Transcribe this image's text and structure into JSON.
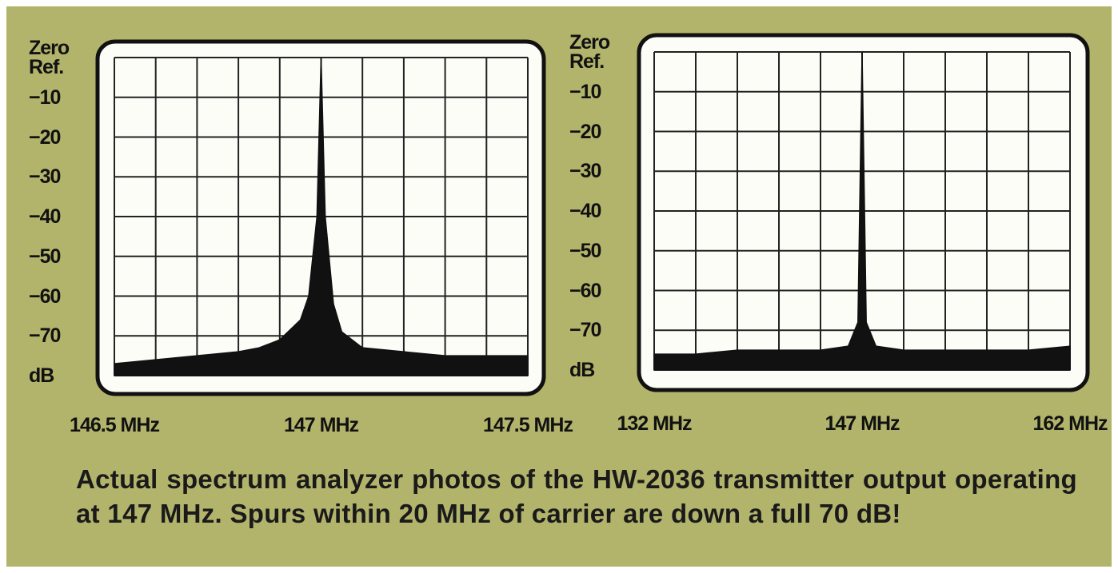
{
  "chart_data": [
    {
      "type": "area",
      "color": "#111111",
      "grid": true,
      "x": [
        146.5,
        146.6,
        146.7,
        146.8,
        146.85,
        146.9,
        146.95,
        146.97,
        146.99,
        147.0,
        147.01,
        147.03,
        147.05,
        147.1,
        147.2,
        147.3,
        147.4,
        147.5
      ],
      "values": [
        -77,
        -76,
        -75,
        -74,
        -73,
        -71,
        -66,
        -60,
        -40,
        0,
        -40,
        -62,
        -69,
        -73,
        -74,
        -75,
        -75,
        -75
      ],
      "xlim": [
        146.5,
        147.5
      ],
      "xticks": [
        {
          "value": 146.5,
          "label": "146.5 MHz"
        },
        {
          "value": 147,
          "label": "147 MHz"
        },
        {
          "value": 147.5,
          "label": "147.5 MHz"
        }
      ],
      "ylim": [
        -80,
        0
      ],
      "yticks": [
        {
          "value": 0,
          "label": "Zero Ref."
        },
        {
          "value": -10,
          "label": "−10"
        },
        {
          "value": -20,
          "label": "−20"
        },
        {
          "value": -30,
          "label": "−30"
        },
        {
          "value": -40,
          "label": "−40"
        },
        {
          "value": -50,
          "label": "−50"
        },
        {
          "value": -60,
          "label": "−60"
        },
        {
          "value": -70,
          "label": "−70"
        },
        {
          "value": -80,
          "label": "dB"
        }
      ]
    },
    {
      "type": "area",
      "color": "#111111",
      "grid": true,
      "x": [
        132,
        135,
        138,
        141,
        144,
        146,
        146.7,
        147,
        147.3,
        148,
        150,
        153,
        156,
        159,
        162
      ],
      "values": [
        -76,
        -76,
        -75,
        -75,
        -75,
        -74,
        -68,
        0,
        -68,
        -74,
        -75,
        -75,
        -75,
        -75,
        -74
      ],
      "xlim": [
        132,
        162
      ],
      "xticks": [
        {
          "value": 132,
          "label": "132 MHz"
        },
        {
          "value": 147,
          "label": "147 MHz"
        },
        {
          "value": 162,
          "label": "162 MHz"
        }
      ],
      "ylim": [
        -80,
        0
      ],
      "yticks": [
        {
          "value": 0,
          "label": "Zero Ref."
        },
        {
          "value": -10,
          "label": "−10"
        },
        {
          "value": -20,
          "label": "−20"
        },
        {
          "value": -30,
          "label": "−30"
        },
        {
          "value": -40,
          "label": "−40"
        },
        {
          "value": -50,
          "label": "−50"
        },
        {
          "value": -60,
          "label": "−60"
        },
        {
          "value": -70,
          "label": "−70"
        },
        {
          "value": -80,
          "label": "dB"
        }
      ]
    }
  ],
  "caption": "Actual spectrum analyzer photos of the HW-2036 transmitter output operating at 147 MHz. Spurs within 20 MHz of carrier are down a full 70 dB!"
}
